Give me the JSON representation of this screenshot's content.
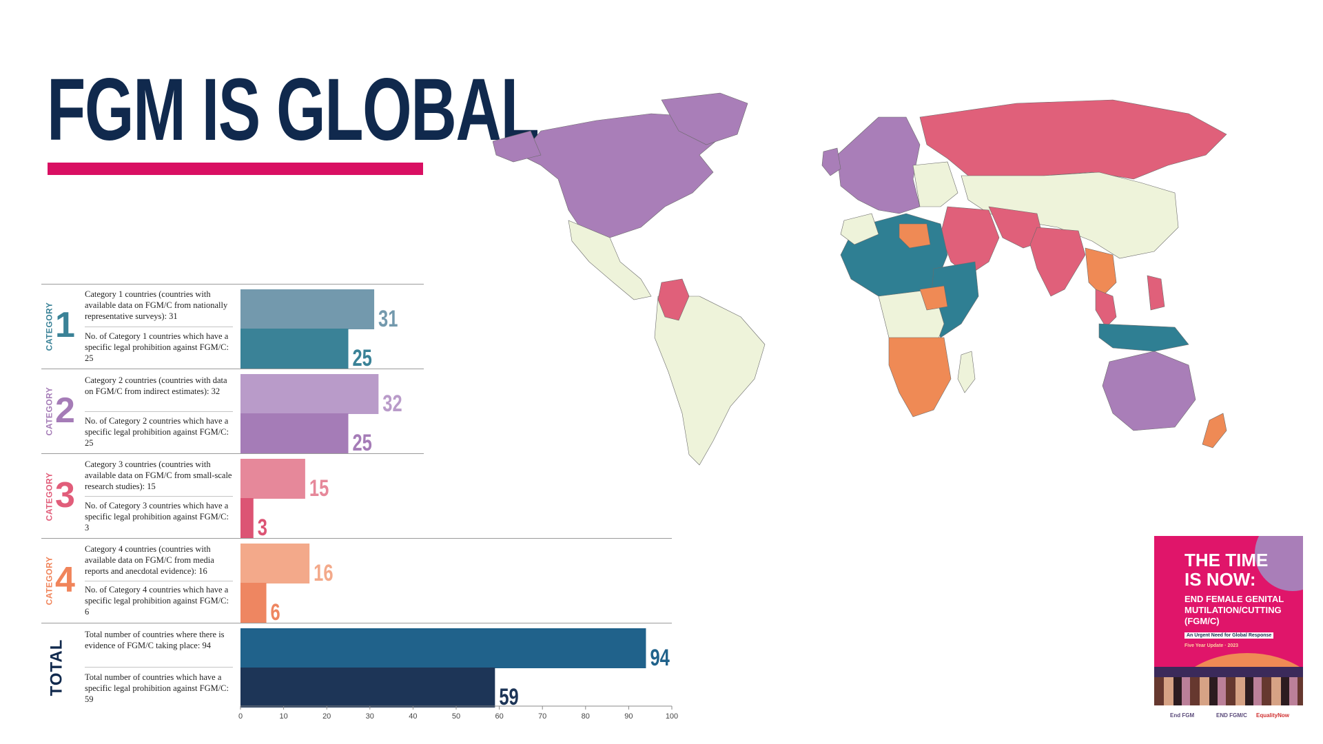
{
  "title": "FGM IS GLOBAL",
  "colors": {
    "title": "#10294d",
    "accent": "#d90f62",
    "map_ocean": "#ffffff",
    "map_land": "#eef3da",
    "map_purple": "#a97eb8",
    "map_red": "#e0607a",
    "map_teal": "#2f7f93",
    "map_orange": "#ef8a55"
  },
  "categories": [
    {
      "word": "CATEGORY",
      "number": "1",
      "color": "#3a8297",
      "desc_a": "Category 1 countries (countries with available data on FGM/C from nationally representative surveys): 31",
      "desc_b": "No. of Category 1 countries which have a specific legal prohibition against FGM/C: 25"
    },
    {
      "word": "CATEGORY",
      "number": "2",
      "color": "#a57cb7",
      "desc_a": "Category 2 countries (countries with data on FGM/C from indirect estimates): 32",
      "desc_b": "No. of Category 2 countries which have a specific legal prohibition against FGM/C: 25"
    },
    {
      "word": "CATEGORY",
      "number": "3",
      "color": "#e15d7a",
      "desc_a": "Category 3 countries (countries with available data on FGM/C from small-scale research studies): 15",
      "desc_b": "No. of Category 3 countries which have a specific legal prohibition against FGM/C: 3"
    },
    {
      "word": "CATEGORY",
      "number": "4",
      "color": "#f0845a",
      "desc_a": "Category 4 countries (countries with available data on FGM/C from media reports and anecdotal evidence): 16",
      "desc_b": "No. of Category 4 countries which have a specific legal prohibition against FGM/C: 6"
    }
  ],
  "total": {
    "label": "TOTAL",
    "desc_a": "Total number of countries where there is evidence of FGM/C taking place: 94",
    "desc_b": "Total number of countries which have a specific legal prohibition against FGM/C: 59"
  },
  "chart_data": {
    "type": "bar",
    "orientation": "horizontal",
    "categories": [
      "Category 1",
      "Category 2",
      "Category 3",
      "Category 4",
      "Total"
    ],
    "series": [
      {
        "values": [
          31,
          32,
          15,
          16,
          94
        ],
        "colors": [
          "#7399ad",
          "#b99bc9",
          "#e6889a",
          "#f3a98a",
          "#20628b"
        ]
      },
      {
        "values": [
          25,
          25,
          3,
          6,
          59
        ],
        "colors": [
          "#3a8297",
          "#a57cb7",
          "#dc5474",
          "#ee8661",
          "#1d3557"
        ]
      }
    ],
    "xlim": [
      0,
      100
    ],
    "xticks": [
      0,
      10,
      20,
      30,
      40,
      50,
      60,
      70,
      80,
      90,
      100
    ]
  },
  "poster": {
    "headline_1": "THE TIME",
    "headline_2": "IS NOW:",
    "sub_1": "END FEMALE GENITAL",
    "sub_2": "MUTILATION/CUTTING",
    "sub_3": "(FGM/C)",
    "tagline": "An Urgent Need for Global Response",
    "update": "Five Year Update · 2023"
  },
  "logos": [
    "End FGM",
    "END FGM/C",
    "EqualityNow"
  ]
}
